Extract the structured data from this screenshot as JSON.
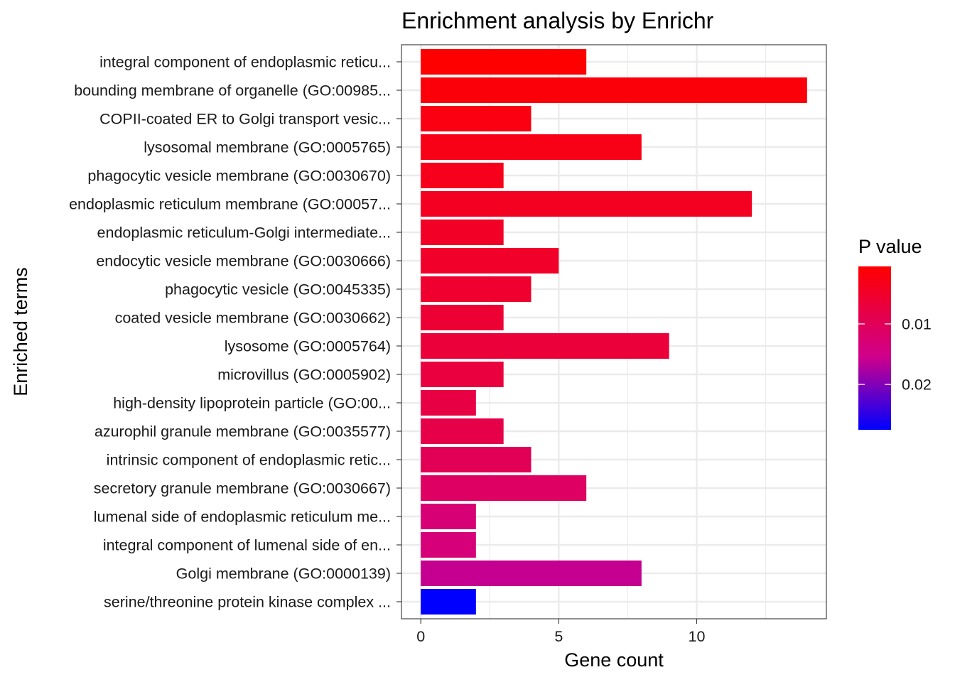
{
  "chart_data": {
    "type": "bar",
    "orientation": "horizontal",
    "title": "Enrichment analysis by Enrichr",
    "xlabel": "Gene count",
    "ylabel": "Enriched terms",
    "xlim": [
      -0.7,
      14.7
    ],
    "x_ticks": [
      0,
      5,
      10
    ],
    "grid": true,
    "legend": {
      "title": "P value",
      "placement": "right",
      "type": "colorbar",
      "low_color": "#FF0000",
      "high_color": "#0000FF",
      "range": [
        0.0005,
        0.0275
      ],
      "ticks": [
        {
          "value": 0.01,
          "label": "0.01"
        },
        {
          "value": 0.02,
          "label": "0.02"
        }
      ]
    },
    "categories": [
      "integral component of endoplasmic reticu...",
      "bounding membrane of organelle (GO:00985...",
      "COPII-coated ER to Golgi transport vesic...",
      "lysosomal membrane (GO:0005765)",
      "phagocytic vesicle membrane (GO:0030670)",
      "endoplasmic reticulum membrane (GO:00057...",
      "endoplasmic reticulum-Golgi intermediate...",
      "endocytic vesicle membrane (GO:0030666)",
      "phagocytic vesicle (GO:0045335)",
      "coated vesicle membrane (GO:0030662)",
      "lysosome (GO:0005764)",
      "microvillus (GO:0005902)",
      "high-density lipoprotein particle (GO:00...",
      "azurophil granule membrane (GO:0035577)",
      "intrinsic component of endoplasmic retic...",
      "secretory granule membrane (GO:0030667)",
      "lumenal side of endoplasmic reticulum me...",
      "integral component of lumenal side of en...",
      "Golgi membrane (GO:0000139)",
      "serine/threonine protein kinase complex ..."
    ],
    "values": [
      6,
      14,
      4,
      8,
      3,
      12,
      3,
      5,
      4,
      3,
      9,
      3,
      2,
      3,
      4,
      6,
      2,
      2,
      8,
      2
    ],
    "p_values": [
      0.0006,
      0.0015,
      0.0022,
      0.0028,
      0.0034,
      0.004,
      0.0045,
      0.005,
      0.0055,
      0.0061,
      0.0066,
      0.0072,
      0.0078,
      0.0085,
      0.0098,
      0.011,
      0.013,
      0.0135,
      0.016,
      0.0275
    ]
  }
}
